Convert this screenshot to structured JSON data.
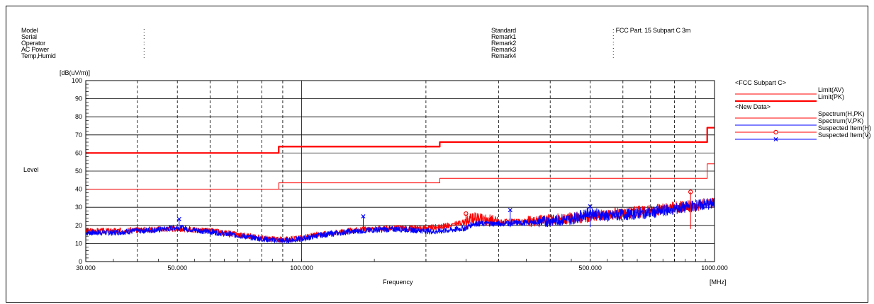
{
  "header": {
    "left": [
      {
        "label": "Model",
        "value": ":"
      },
      {
        "label": "Serial",
        "value": ":"
      },
      {
        "label": "Operator",
        "value": ":"
      },
      {
        "label": "AC Power",
        "value": ":"
      },
      {
        "label": "Temp,Humid",
        "value": ":"
      }
    ],
    "right": [
      {
        "label": "Standard",
        "value": ": FCC Part. 15 Subpart C 3m"
      },
      {
        "label": "Remark1",
        "value": ":"
      },
      {
        "label": "Remark2",
        "value": ":"
      },
      {
        "label": "Remark3",
        "value": ":"
      },
      {
        "label": "Remark4",
        "value": ":"
      }
    ]
  },
  "chart_data": {
    "type": "line",
    "xscale": "log",
    "xlim": [
      30,
      1000
    ],
    "ylim": [
      0,
      100
    ],
    "yunit": "[dB(uV/m)]",
    "xunit": "[MHz]",
    "xlabel": "Frequency",
    "ylabel": "Level",
    "grid": true,
    "legend_position": "right",
    "yticks": [
      0,
      10,
      20,
      30,
      40,
      50,
      60,
      70,
      80,
      90,
      100
    ],
    "xtick_labels": [
      {
        "x": 30,
        "label": "30.000"
      },
      {
        "x": 50,
        "label": "50.000"
      },
      {
        "x": 100,
        "label": "100.000"
      },
      {
        "x": 500,
        "label": "500.000"
      },
      {
        "x": 1000,
        "label": "1000.000"
      }
    ],
    "legend_groups": [
      {
        "title": "<FCC Subpart C>",
        "items": [
          {
            "name": "Limit(AV)",
            "color": "#ff0000",
            "style": "thin"
          },
          {
            "name": "Limit(PK)",
            "color": "#ff0000",
            "style": "thick"
          }
        ]
      },
      {
        "title": "<New Data>",
        "items": [
          {
            "name": "Spectrum(H,PK)",
            "color": "#ff0000",
            "style": "thin"
          },
          {
            "name": "Spectrum(V,PK)",
            "color": "#0000ff",
            "style": "thin"
          },
          {
            "name": "Suspected Item(H)",
            "color": "#ff0000",
            "style": "marker-o"
          },
          {
            "name": "Suspected Item(V)",
            "color": "#0000ff",
            "style": "marker-x"
          }
        ]
      }
    ],
    "series": [
      {
        "name": "Limit(PK)",
        "color": "#ff0000",
        "width": 2.2,
        "step": true,
        "points": [
          [
            30,
            60
          ],
          [
            88,
            60
          ],
          [
            88,
            63.5
          ],
          [
            216,
            63.5
          ],
          [
            216,
            66
          ],
          [
            960,
            66
          ],
          [
            960,
            74
          ],
          [
            1000,
            74
          ]
        ]
      },
      {
        "name": "Limit(AV)",
        "color": "#ff0000",
        "width": 1,
        "step": true,
        "points": [
          [
            30,
            40
          ],
          [
            88,
            40
          ],
          [
            88,
            43.5
          ],
          [
            216,
            43.5
          ],
          [
            216,
            46
          ],
          [
            960,
            46
          ],
          [
            960,
            54
          ],
          [
            1000,
            54
          ]
        ]
      },
      {
        "name": "Spectrum(H,PK)",
        "color": "#ff0000",
        "width": 1,
        "points": [
          [
            30,
            17
          ],
          [
            35,
            17
          ],
          [
            40,
            17.5
          ],
          [
            45,
            18
          ],
          [
            50,
            18
          ],
          [
            55,
            17.5
          ],
          [
            60,
            17
          ],
          [
            70,
            15
          ],
          [
            80,
            13
          ],
          [
            90,
            12
          ],
          [
            100,
            13
          ],
          [
            110,
            15
          ],
          [
            130,
            17
          ],
          [
            150,
            18
          ],
          [
            170,
            18.5
          ],
          [
            200,
            18.5
          ],
          [
            210,
            19
          ],
          [
            230,
            20
          ],
          [
            250,
            22
          ],
          [
            260,
            24
          ],
          [
            280,
            23
          ],
          [
            300,
            22
          ],
          [
            350,
            22
          ],
          [
            400,
            23
          ],
          [
            450,
            24
          ],
          [
            500,
            25
          ],
          [
            550,
            26
          ],
          [
            600,
            27
          ],
          [
            700,
            28
          ],
          [
            800,
            30
          ],
          [
            900,
            31
          ],
          [
            1000,
            33
          ]
        ]
      },
      {
        "name": "Spectrum(V,PK)",
        "color": "#0000ff",
        "width": 1,
        "points": [
          [
            30,
            16
          ],
          [
            35,
            16
          ],
          [
            40,
            17
          ],
          [
            45,
            17.5
          ],
          [
            50,
            19
          ],
          [
            55,
            17.5
          ],
          [
            60,
            16.5
          ],
          [
            70,
            14.5
          ],
          [
            80,
            12.5
          ],
          [
            90,
            11.5
          ],
          [
            100,
            12.5
          ],
          [
            110,
            14.5
          ],
          [
            130,
            16.5
          ],
          [
            150,
            17.5
          ],
          [
            170,
            18
          ],
          [
            200,
            17
          ],
          [
            210,
            16.5
          ],
          [
            230,
            17.5
          ],
          [
            250,
            18.5
          ],
          [
            260,
            21
          ],
          [
            280,
            21
          ],
          [
            300,
            21
          ],
          [
            350,
            21.5
          ],
          [
            400,
            22.5
          ],
          [
            450,
            23.5
          ],
          [
            500,
            27
          ],
          [
            550,
            25
          ],
          [
            600,
            26
          ],
          [
            700,
            27
          ],
          [
            800,
            29
          ],
          [
            900,
            31
          ],
          [
            1000,
            32
          ]
        ]
      }
    ],
    "suspected_h": [
      [
        250.0,
        26.5
      ],
      [
        875.0,
        38.5
      ]
    ],
    "suspected_v": [
      [
        50.5,
        23.5
      ],
      [
        141.0,
        25.0
      ],
      [
        320.0,
        28.5
      ],
      [
        500.0,
        30.5
      ]
    ]
  }
}
